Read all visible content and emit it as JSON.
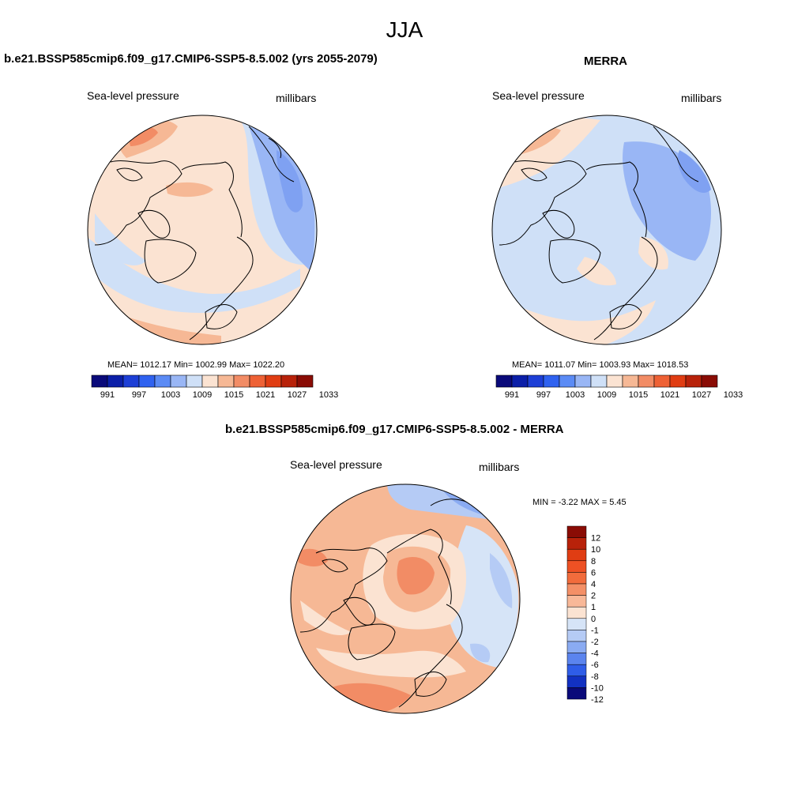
{
  "figure": {
    "title": "JJA",
    "panels": [
      {
        "title": "b.e21.BSSP585cmip6.f09_g17.CMIP6-SSP5-8.5.002 (yrs 2055-2079)",
        "field": "Sea-level pressure",
        "units": "millibars",
        "stats": "MEAN= 1012.17   Min= 1002.99   Max= 1022.20"
      },
      {
        "title": "MERRA",
        "field": "Sea-level pressure",
        "units": "millibars",
        "stats": "MEAN= 1011.07   Min= 1003.93   Max= 1018.53"
      },
      {
        "title": "b.e21.BSSP585cmip6.f09_g17.CMIP6-SSP5-8.5.002 - MERRA",
        "field": "Sea-level pressure",
        "units": "millibars",
        "stats": "MIN =  -3.22 MAX =   5.45"
      }
    ],
    "colorbar_abs": {
      "labels": [
        "991",
        "997",
        "1003",
        "1009",
        "1015",
        "1021",
        "1027",
        "1033"
      ],
      "colors": [
        "#0a0a7a",
        "#0b1fa8",
        "#1d3fd6",
        "#2f62f0",
        "#5b8bf5",
        "#99b6f5",
        "#cfe0f7",
        "#fbe3d2",
        "#f6b895",
        "#f28c65",
        "#ee6135",
        "#e03d13",
        "#b8220a",
        "#8a0c05"
      ]
    },
    "colorbar_diff": {
      "labels": [
        "12",
        "10",
        "8",
        "6",
        "4",
        "2",
        "1",
        "0",
        "-1",
        "-2",
        "-4",
        "-6",
        "-8",
        "-10",
        "-12"
      ],
      "colors": [
        "#8a0c05",
        "#b8220a",
        "#e03d13",
        "#ee5124",
        "#f26c3c",
        "#f49067",
        "#f8b898",
        "#fbe3d2",
        "#d6e4f7",
        "#b5cbf5",
        "#8aabf2",
        "#5b84ee",
        "#2f5de8",
        "#1231c2",
        "#0a0a7a"
      ]
    }
  }
}
